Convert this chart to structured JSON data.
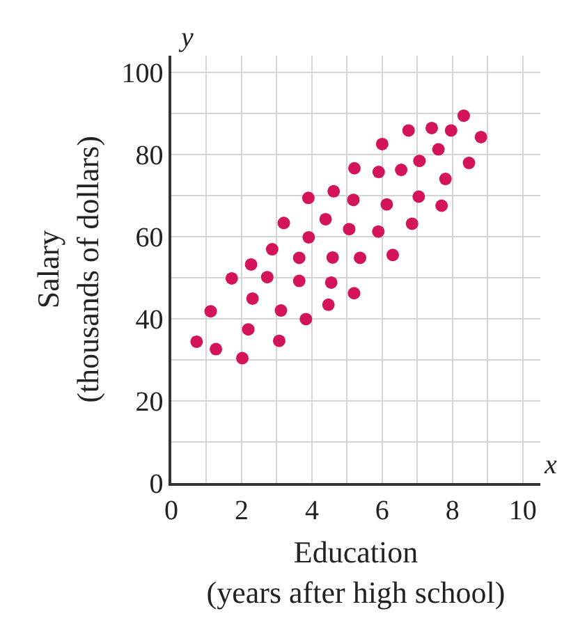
{
  "chart_data": {
    "type": "scatter",
    "xlabel": "Education\n(years after high school)",
    "ylabel": "Salary\n(thousands of dollars)",
    "annotations": [
      "x",
      "y"
    ],
    "xlim": [
      0,
      10.5
    ],
    "ylim": [
      0,
      104
    ],
    "xticks": [
      0,
      {
        "value": 1,
        "label": null
      },
      2,
      {
        "value": 3,
        "label": null
      },
      4,
      {
        "value": 5,
        "label": null
      },
      6,
      {
        "value": 7,
        "label": null
      },
      8,
      {
        "value": 9,
        "label": null
      },
      10
    ],
    "yticks": [
      0,
      {
        "value": 10,
        "label": null
      },
      20,
      {
        "value": 30,
        "label": null
      },
      40,
      {
        "value": 50,
        "label": null
      },
      60,
      {
        "value": 70,
        "label": null
      },
      80,
      {
        "value": 90,
        "label": null
      },
      100
    ],
    "grid": true,
    "marker": "circle",
    "series": [
      {
        "color": "#d4145a",
        "x": [
          0.72,
          1.27,
          2.02,
          1.12,
          2.19,
          3.07,
          1.72,
          2.27,
          2.73,
          2.31,
          3.12,
          3.83,
          3.64,
          3.64,
          4.59,
          4.55,
          4.47,
          5.2,
          5.37,
          6.3,
          2.87,
          8.32,
          6.75,
          7.41,
          7.96,
          8.81,
          6.0,
          7.6,
          7.06,
          8.47,
          5.21,
          5.9,
          6.54,
          7.8,
          3.9,
          4.62,
          5.18,
          6.13,
          7.04,
          7.69,
          3.2,
          4.39,
          3.91,
          5.06,
          5.89,
          6.85
        ],
        "values": [
          34.4,
          32.6,
          30.4,
          41.8,
          37.4,
          34.6,
          49.8,
          53.2,
          50.1,
          44.9,
          42.0,
          39.9,
          54.8,
          49.2,
          54.9,
          48.8,
          43.4,
          46.2,
          54.8,
          55.5,
          56.9,
          89.4,
          85.8,
          86.4,
          85.8,
          84.2,
          82.5,
          81.2,
          78.4,
          77.9,
          76.6,
          75.7,
          76.2,
          74.0,
          69.4,
          71.0,
          68.9,
          67.8,
          69.7,
          67.5,
          63.3,
          64.2,
          59.8,
          61.8,
          61.2,
          63.1
        ]
      }
    ]
  }
}
